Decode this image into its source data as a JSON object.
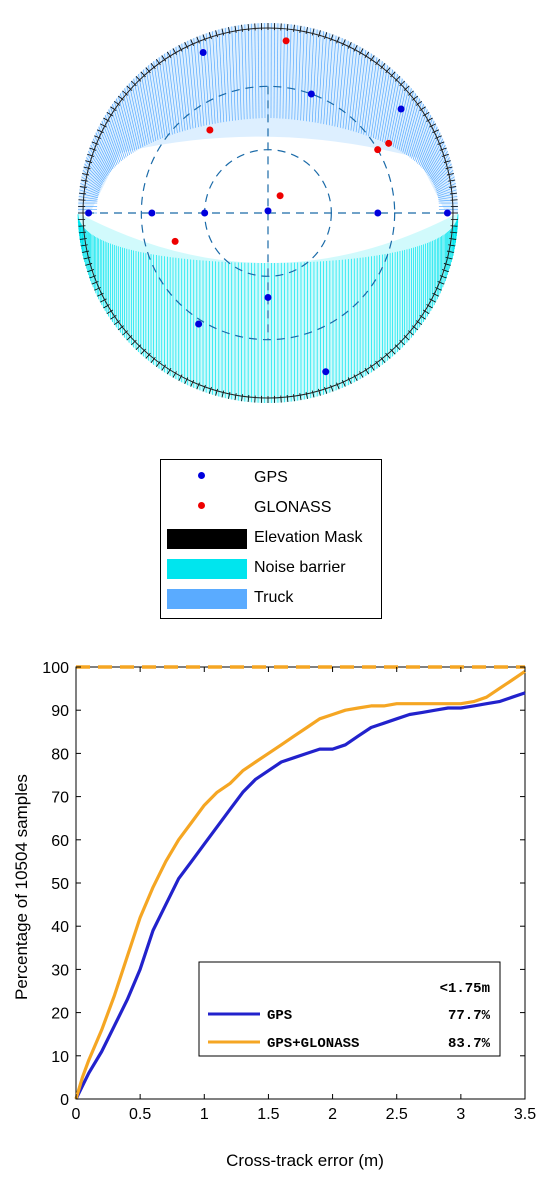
{
  "skyplot": {
    "elevation_rings_deg": [
      30,
      60
    ],
    "gps_satellites": [
      {
        "az": 338,
        "el": 8
      },
      {
        "az": 20,
        "el": 30
      },
      {
        "az": 0,
        "el": 89
      },
      {
        "az": 90,
        "el": 38
      },
      {
        "az": 90,
        "el": 5
      },
      {
        "az": 180,
        "el": 50
      },
      {
        "az": 270,
        "el": 60
      },
      {
        "az": 270,
        "el": 35
      },
      {
        "az": 270,
        "el": 5
      },
      {
        "az": 52,
        "el": 10
      },
      {
        "az": 160,
        "el": 10
      },
      {
        "az": 212,
        "el": 28
      }
    ],
    "glonass_satellites": [
      {
        "az": 325,
        "el": 42
      },
      {
        "az": 60,
        "el": 30
      },
      {
        "az": 60,
        "el": 24
      },
      {
        "az": 6,
        "el": 8
      },
      {
        "az": 35,
        "el": 80
      },
      {
        "az": 253,
        "el": 44
      }
    ],
    "colors": {
      "gps": "#0000dd",
      "glonass": "#ee0000",
      "elevation_mask": "#000000",
      "noise_barrier": "#00e5ee",
      "truck": "#5aabff",
      "rings": "#1a6aa8"
    }
  },
  "legend": {
    "gps": "GPS",
    "glonass": "GLONASS",
    "elevation_mask": "Elevation Mask",
    "noise_barrier": "Noise barrier",
    "truck": "Truck"
  },
  "chart_data": {
    "type": "line",
    "xlabel": "Cross-track error (m)",
    "ylabel": "Percentage of 10504 samples",
    "xlim": [
      0,
      3.5
    ],
    "ylim": [
      0,
      100
    ],
    "xticks": [
      0,
      0.5,
      1,
      1.5,
      2,
      2.5,
      3,
      3.5
    ],
    "xtick_labels": [
      "0",
      "0.5",
      "1",
      "1.5",
      "2",
      "2.5",
      "3",
      "3.5"
    ],
    "yticks": [
      0,
      10,
      20,
      30,
      40,
      50,
      60,
      70,
      80,
      90,
      100
    ],
    "ytick_labels": [
      "0",
      "10",
      "20",
      "30",
      "40",
      "50",
      "60",
      "70",
      "80",
      "90",
      "100"
    ],
    "grid": false,
    "legend_placement": "bottom-right",
    "legend_header": "<1.75m",
    "reference_line": {
      "y": 100,
      "style": "dashed",
      "color": "#f5a623"
    },
    "series": [
      {
        "name": "GPS",
        "stat": "77.7%",
        "color": "#2222cc",
        "x": [
          0,
          0.05,
          0.1,
          0.2,
          0.3,
          0.4,
          0.5,
          0.6,
          0.7,
          0.8,
          0.9,
          1.0,
          1.1,
          1.2,
          1.3,
          1.4,
          1.5,
          1.6,
          1.7,
          1.8,
          1.9,
          2.0,
          2.1,
          2.2,
          2.3,
          2.4,
          2.5,
          2.6,
          2.7,
          2.8,
          2.9,
          3.0,
          3.1,
          3.2,
          3.3,
          3.4,
          3.5
        ],
        "y": [
          0,
          3,
          6,
          11,
          17,
          23,
          30,
          39,
          45,
          51,
          55,
          59,
          63,
          67,
          71,
          74,
          76,
          78,
          79,
          80,
          81,
          81,
          82,
          84,
          86,
          87,
          88,
          89,
          89.5,
          90,
          90.5,
          90.5,
          91,
          91.5,
          92,
          93,
          94
        ]
      },
      {
        "name": "GPS+GLONASS",
        "stat": "83.7%",
        "color": "#f5a623",
        "x": [
          0,
          0.05,
          0.1,
          0.2,
          0.3,
          0.4,
          0.5,
          0.6,
          0.7,
          0.8,
          0.9,
          1.0,
          1.1,
          1.2,
          1.3,
          1.4,
          1.5,
          1.6,
          1.7,
          1.8,
          1.9,
          2.0,
          2.1,
          2.2,
          2.3,
          2.4,
          2.5,
          2.6,
          2.7,
          2.8,
          2.9,
          3.0,
          3.1,
          3.2,
          3.3,
          3.4,
          3.5
        ],
        "y": [
          0,
          5,
          9,
          16,
          24,
          33,
          42,
          49,
          55,
          60,
          64,
          68,
          71,
          73,
          76,
          78,
          80,
          82,
          84,
          86,
          88,
          89,
          90,
          90.5,
          91,
          91,
          91.5,
          91.5,
          91.5,
          91.5,
          91.5,
          91.5,
          92,
          93,
          95,
          97,
          99
        ]
      }
    ]
  }
}
